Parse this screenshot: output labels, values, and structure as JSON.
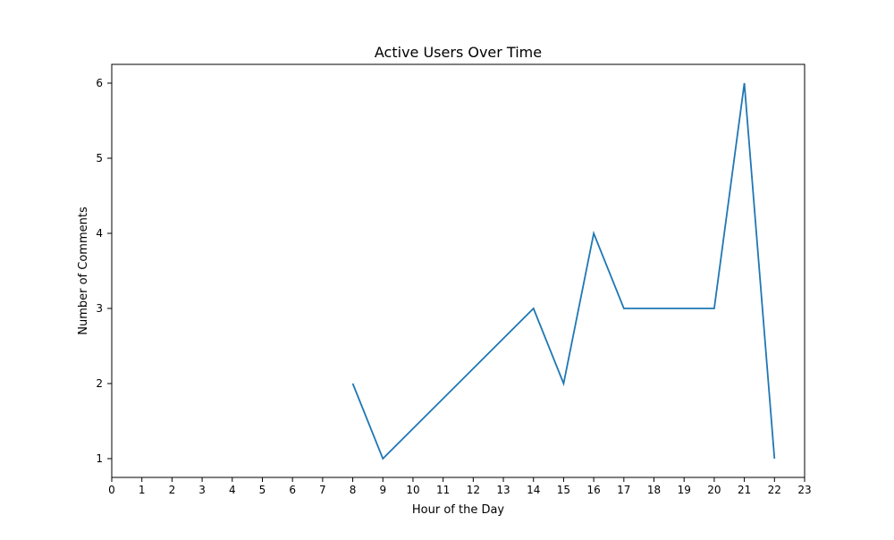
{
  "chart_data": {
    "type": "line",
    "title": "Active Users Over Time",
    "xlabel": "Hour of the Day",
    "ylabel": "Number of Comments",
    "xlim": [
      0,
      23
    ],
    "ylim": [
      0.75,
      6.25
    ],
    "xticks": [
      0,
      1,
      2,
      3,
      4,
      5,
      6,
      7,
      8,
      9,
      10,
      11,
      12,
      13,
      14,
      15,
      16,
      17,
      18,
      19,
      20,
      21,
      22,
      23
    ],
    "yticks": [
      1,
      2,
      3,
      4,
      5,
      6
    ],
    "grid": false,
    "legend": "none",
    "series": [
      {
        "color": "#1f77b4",
        "x": [
          8,
          9,
          14,
          15,
          16,
          17,
          20,
          21,
          22
        ],
        "y": [
          2,
          1,
          3,
          2,
          4,
          3,
          3,
          6,
          1
        ]
      }
    ]
  }
}
